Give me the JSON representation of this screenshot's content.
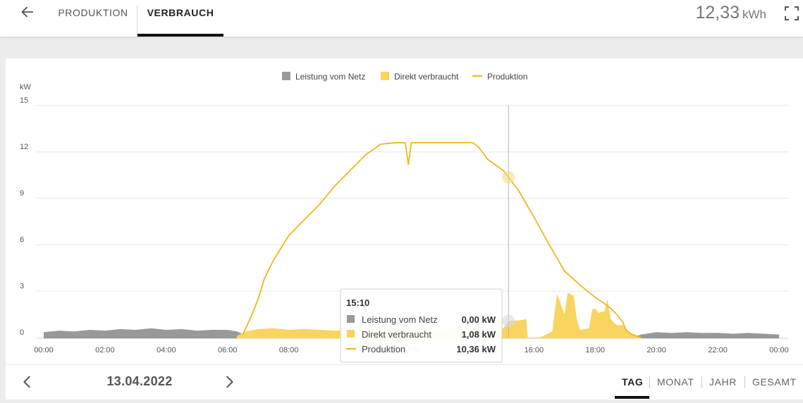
{
  "header": {
    "tabs": [
      {
        "label": "PRODUKTION",
        "active": false
      },
      {
        "label": "VERBRAUCH",
        "active": true
      }
    ],
    "total_value": "12,33",
    "total_unit": "kWh",
    "icons": {
      "back": "arrow-left-icon",
      "fullscreen": "fullscreen-icon"
    }
  },
  "footer": {
    "date": "13.04.2022",
    "period_tabs": [
      {
        "label": "TAG",
        "active": true
      },
      {
        "label": "MONAT",
        "active": false
      },
      {
        "label": "JAHR",
        "active": false
      },
      {
        "label": "GESAMT",
        "active": false
      }
    ],
    "icons": {
      "prev": "chevron-left-icon",
      "next": "chevron-right-icon"
    }
  },
  "tooltip": {
    "time": "15:10",
    "rows": [
      {
        "label": "Leistung vom Netz",
        "value": "0,00 kW",
        "color": "#999999",
        "marker": "square"
      },
      {
        "label": "Direkt verbraucht",
        "value": "1,08 kW",
        "color": "#f8d461",
        "marker": "square"
      },
      {
        "label": "Produktion",
        "value": "10,36 kW",
        "color": "#e8b820",
        "marker": "line"
      }
    ]
  },
  "chart_data": {
    "type": "area",
    "ylabel": "kW",
    "ylim": [
      0,
      15
    ],
    "yticks": [
      0,
      3,
      6,
      9,
      12,
      15
    ],
    "xlim": [
      0,
      24
    ],
    "xticks": [
      "00:00",
      "02:00",
      "04:00",
      "06:00",
      "08:00",
      "10:00",
      "12:00",
      "14:00",
      "16:00",
      "18:00",
      "20:00",
      "22:00",
      "00:00"
    ],
    "legend_position": "top",
    "grid": true,
    "crosshair_x": 15.17,
    "series": [
      {
        "name": "Leistung vom Netz",
        "type": "area",
        "color": "#999999",
        "x": [
          0,
          0.5,
          1,
          1.5,
          2,
          2.5,
          3,
          3.5,
          4,
          4.5,
          5,
          5.5,
          6,
          6.3,
          6.6,
          7,
          19.2,
          19.5,
          20,
          20.5,
          21,
          21.5,
          22,
          22.5,
          23,
          23.5,
          24
        ],
        "y": [
          0.35,
          0.45,
          0.4,
          0.5,
          0.45,
          0.55,
          0.5,
          0.6,
          0.5,
          0.55,
          0.45,
          0.5,
          0.5,
          0.4,
          0.15,
          0,
          0,
          0.2,
          0.35,
          0.3,
          0.35,
          0.3,
          0.3,
          0.25,
          0.3,
          0.25,
          0.2
        ]
      },
      {
        "name": "Direkt verbraucht",
        "type": "area",
        "color": "#f8d461",
        "x": [
          6.3,
          6.6,
          7,
          7.5,
          8,
          8.5,
          9,
          9.5,
          10,
          10.5,
          11,
          11.5,
          12,
          12.5,
          13,
          13.5,
          14,
          14.5,
          15,
          15.17,
          15.5,
          15.75,
          15.8,
          16.2,
          16.6,
          16.75,
          16.8,
          17,
          17.1,
          17.3,
          17.4,
          17.5,
          17.8,
          17.9,
          18,
          18.1,
          18.3,
          18.4,
          18.5,
          18.7,
          18.9,
          19,
          19.2,
          19.5
        ],
        "y": [
          0.1,
          0.4,
          0.55,
          0.6,
          0.5,
          0.55,
          0.5,
          0.45,
          0.5,
          0.5,
          0.55,
          0.5,
          0.5,
          0.55,
          0.5,
          0.6,
          0.55,
          0.5,
          0.6,
          1.08,
          1.1,
          1.2,
          0,
          0,
          0.4,
          2.8,
          2.6,
          1.5,
          2.9,
          2.7,
          1.2,
          0.5,
          0.6,
          1.8,
          1.9,
          1.6,
          1.7,
          2.5,
          1.2,
          0.8,
          0.8,
          0.5,
          0.2,
          0
        ]
      },
      {
        "name": "Produktion",
        "type": "line",
        "color": "#e8b820",
        "x": [
          6.5,
          6.8,
          7,
          7.2,
          7.5,
          8,
          8.5,
          9,
          9.5,
          10,
          10.5,
          11,
          11.5,
          11.8,
          11.9,
          12,
          12.1,
          12.2,
          12.5,
          13,
          13.5,
          14,
          14.2,
          14.5,
          15,
          15.17,
          15.5,
          16,
          16.5,
          17,
          17.5,
          18,
          18.3,
          18.5,
          18.7,
          18.9,
          19,
          19.2,
          19.5
        ],
        "y": [
          0.2,
          1.5,
          2.5,
          3.8,
          5.0,
          6.6,
          7.6,
          8.6,
          9.8,
          10.8,
          11.8,
          12.5,
          12.6,
          12.6,
          11.2,
          12.6,
          12.6,
          12.6,
          12.6,
          12.6,
          12.6,
          12.6,
          12.3,
          11.5,
          10.8,
          10.36,
          9.5,
          7.8,
          6.0,
          4.3,
          3.4,
          2.6,
          2.2,
          1.9,
          1.5,
          1.0,
          0.5,
          0.2,
          0
        ]
      }
    ]
  }
}
